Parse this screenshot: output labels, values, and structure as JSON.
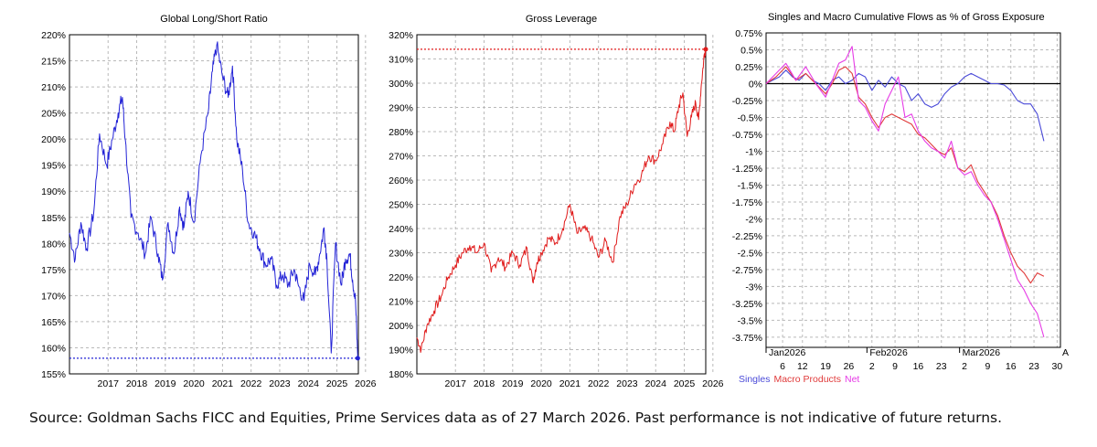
{
  "colors": {
    "blue": "#2323d6",
    "red": "#e01b1b",
    "magenta": "#e63be6",
    "grid": "#b9b9b9"
  },
  "source_note": "Source: Goldman Sachs FICC and Equities, Prime Services data as of 27 March 2026. Past performance is not indicative of future returns.",
  "chart_data": [
    {
      "type": "line",
      "title": "Global Long/Short Ratio",
      "y_unit": "%",
      "ylim": [
        155,
        220
      ],
      "yticks": [
        220,
        215,
        210,
        205,
        200,
        195,
        190,
        185,
        180,
        175,
        170,
        165,
        160,
        155
      ],
      "xlim": [
        2016.15,
        2026.25
      ],
      "xticks": [
        "2017",
        "2018",
        "2019",
        "2020",
        "2021",
        "2022",
        "2023",
        "2024",
        "2025",
        "2026"
      ],
      "grid": true,
      "reference_line": 158,
      "series": [
        {
          "color": "#2323d6",
          "x": [
            2016.15,
            2016.35,
            2016.55,
            2016.75,
            2017.0,
            2017.2,
            2017.45,
            2017.65,
            2017.85,
            2018.0,
            2018.1,
            2018.3,
            2018.55,
            2018.8,
            2019.0,
            2019.25,
            2019.4,
            2019.6,
            2019.8,
            2020.0,
            2020.15,
            2020.3,
            2020.5,
            2020.75,
            2021.0,
            2021.15,
            2021.3,
            2021.5,
            2021.7,
            2021.85,
            2022.0,
            2022.2,
            2022.4,
            2022.6,
            2022.8,
            2023.0,
            2023.2,
            2023.4,
            2023.6,
            2023.8,
            2024.0,
            2024.15,
            2024.35,
            2024.55,
            2024.75,
            2024.9,
            2025.05,
            2025.15,
            2025.3,
            2025.45,
            2025.65,
            2025.8,
            2025.95,
            2026.05,
            2026.15,
            2026.23
          ],
          "y": [
            182,
            177,
            184,
            179,
            186,
            201,
            195,
            200,
            205,
            208,
            200,
            185,
            182,
            178,
            185,
            178,
            173,
            184,
            178,
            187,
            183,
            190,
            184,
            197,
            205,
            213,
            218,
            212,
            208,
            214,
            200,
            194,
            184,
            182,
            179,
            176,
            177,
            172,
            174,
            172,
            175,
            172,
            169,
            176,
            174,
            178,
            183,
            177,
            159,
            180,
            172,
            177,
            178,
            173,
            169,
            158
          ]
        }
      ]
    },
    {
      "type": "line",
      "title": "Gross Leverage",
      "y_unit": "%",
      "ylim": [
        180,
        320
      ],
      "yticks": [
        320,
        310,
        300,
        290,
        280,
        270,
        260,
        250,
        240,
        230,
        220,
        210,
        200,
        190,
        180
      ],
      "xlim": [
        2016.15,
        2026.25
      ],
      "xticks": [
        "2017",
        "2018",
        "2019",
        "2020",
        "2021",
        "2022",
        "2023",
        "2024",
        "2025",
        "2026"
      ],
      "grid": true,
      "reference_line": 314,
      "series": [
        {
          "color": "#e01b1b",
          "x": [
            2016.15,
            2016.3,
            2016.5,
            2016.75,
            2017.0,
            2017.25,
            2017.5,
            2017.75,
            2018.0,
            2018.25,
            2018.5,
            2018.75,
            2019.0,
            2019.25,
            2019.5,
            2019.75,
            2020.0,
            2020.2,
            2020.35,
            2020.5,
            2020.75,
            2021.0,
            2021.25,
            2021.5,
            2021.75,
            2022.0,
            2022.25,
            2022.5,
            2022.75,
            2023.0,
            2023.25,
            2023.5,
            2023.75,
            2024.0,
            2024.25,
            2024.5,
            2024.75,
            2025.0,
            2025.15,
            2025.3,
            2025.45,
            2025.6,
            2025.75,
            2025.9,
            2026.0,
            2026.1,
            2026.2,
            2026.25
          ],
          "y": [
            195,
            190,
            200,
            206,
            212,
            220,
            225,
            230,
            233,
            230,
            234,
            222,
            228,
            224,
            230,
            225,
            232,
            218,
            226,
            230,
            236,
            234,
            240,
            250,
            238,
            240,
            236,
            228,
            235,
            226,
            245,
            250,
            258,
            262,
            270,
            268,
            275,
            284,
            280,
            290,
            296,
            278,
            286,
            292,
            285,
            300,
            312,
            314
          ]
        }
      ]
    },
    {
      "type": "line",
      "title": "Singles and Macro Cumulative Flows as % of Gross Exposure",
      "y_unit": "%",
      "ylim": [
        -3.9,
        0.75
      ],
      "yticks": [
        "0.75%",
        "0.5%",
        "0.25%",
        "0%",
        "-0.25%",
        "-0.5%",
        "-0.75%",
        "-1%",
        "-1.25%",
        "-1.5%",
        "-1.75%",
        "-2%",
        "-2.25%",
        "-2.5%",
        "-2.75%",
        "-3%",
        "-3.25%",
        "-3.5%",
        "-3.75%"
      ],
      "xlim": [
        0,
        89
      ],
      "xticks": [
        {
          "label": "6",
          "x": 5
        },
        {
          "label": "12",
          "x": 11
        },
        {
          "label": "19",
          "x": 18
        },
        {
          "label": "26",
          "x": 25
        },
        {
          "label": "2",
          "x": 32
        },
        {
          "label": "9",
          "x": 39
        },
        {
          "label": "16",
          "x": 46
        },
        {
          "label": "23",
          "x": 53
        },
        {
          "label": "2",
          "x": 60
        },
        {
          "label": "9",
          "x": 67
        },
        {
          "label": "16",
          "x": 74
        },
        {
          "label": "23",
          "x": 81
        },
        {
          "label": "30",
          "x": 88
        }
      ],
      "month_labels": [
        {
          "label": "Jan2026",
          "x": 0
        },
        {
          "label": "Feb2026",
          "x": 30.5
        },
        {
          "label": "Mar2026",
          "x": 58.5
        }
      ],
      "axis_overflow_label": "A",
      "grid": true,
      "series": [
        {
          "name": "Singles",
          "color": "#4a4ad8",
          "x": [
            0,
            2,
            4,
            6,
            8,
            10,
            12,
            14,
            16,
            18,
            20,
            22,
            24,
            26,
            28,
            30,
            32,
            34,
            36,
            38,
            40,
            42,
            44,
            46,
            48,
            50,
            52,
            54,
            56,
            58,
            60,
            62,
            64,
            66,
            68,
            70,
            72,
            74,
            76,
            78,
            80,
            82,
            84
          ],
          "y": [
            0,
            0.05,
            0.1,
            0.2,
            0.1,
            0.05,
            0.15,
            0.05,
            0.0,
            -0.1,
            0.05,
            0.1,
            0.0,
            0.05,
            0.15,
            0.1,
            -0.1,
            0.05,
            -0.05,
            0.1,
            0.0,
            -0.05,
            -0.25,
            -0.15,
            -0.3,
            -0.35,
            -0.3,
            -0.15,
            -0.05,
            0.0,
            0.1,
            0.15,
            0.1,
            0.05,
            0.0,
            0.0,
            -0.02,
            -0.1,
            -0.25,
            -0.3,
            -0.3,
            -0.45,
            -0.85
          ]
        },
        {
          "name": "Macro Products",
          "color": "#e03a3a",
          "x": [
            0,
            3,
            6,
            9,
            12,
            15,
            18,
            20,
            22,
            24,
            26,
            28,
            30,
            32,
            34,
            36,
            38,
            40,
            42,
            44,
            46,
            48,
            50,
            52,
            54,
            56,
            58,
            60,
            62,
            64,
            66,
            68,
            70,
            72,
            74,
            76,
            78,
            80,
            82,
            84
          ],
          "y": [
            0,
            0.1,
            0.25,
            0.05,
            0.15,
            0.0,
            -0.15,
            0.0,
            0.2,
            0.25,
            0.15,
            -0.2,
            -0.3,
            -0.5,
            -0.65,
            -0.5,
            -0.45,
            -0.5,
            -0.55,
            -0.6,
            -0.75,
            -0.8,
            -0.9,
            -1.0,
            -1.05,
            -0.95,
            -1.25,
            -1.3,
            -1.2,
            -1.45,
            -1.6,
            -1.75,
            -1.95,
            -2.25,
            -2.5,
            -2.7,
            -2.8,
            -2.95,
            -2.8,
            -2.85
          ]
        },
        {
          "name": "Net",
          "color": "#e63be6",
          "x": [
            0,
            3,
            6,
            9,
            12,
            15,
            18,
            20,
            22,
            24,
            26,
            28,
            30,
            32,
            34,
            36,
            38,
            40,
            42,
            44,
            46,
            48,
            50,
            52,
            54,
            56,
            58,
            60,
            62,
            64,
            66,
            68,
            70,
            72,
            74,
            76,
            78,
            80,
            82,
            84
          ],
          "y": [
            0,
            0.15,
            0.3,
            0.05,
            0.25,
            0.0,
            -0.2,
            0.05,
            0.3,
            0.35,
            0.55,
            -0.25,
            -0.35,
            -0.55,
            -0.7,
            -0.3,
            -0.1,
            0.1,
            -0.5,
            -0.45,
            -0.7,
            -0.85,
            -0.95,
            -1.0,
            -1.1,
            -0.85,
            -1.25,
            -1.35,
            -1.3,
            -1.5,
            -1.65,
            -1.75,
            -2.0,
            -2.3,
            -2.6,
            -2.9,
            -3.05,
            -3.25,
            -3.4,
            -3.75
          ]
        }
      ],
      "legend": {
        "placement": "bottom-left"
      }
    }
  ]
}
